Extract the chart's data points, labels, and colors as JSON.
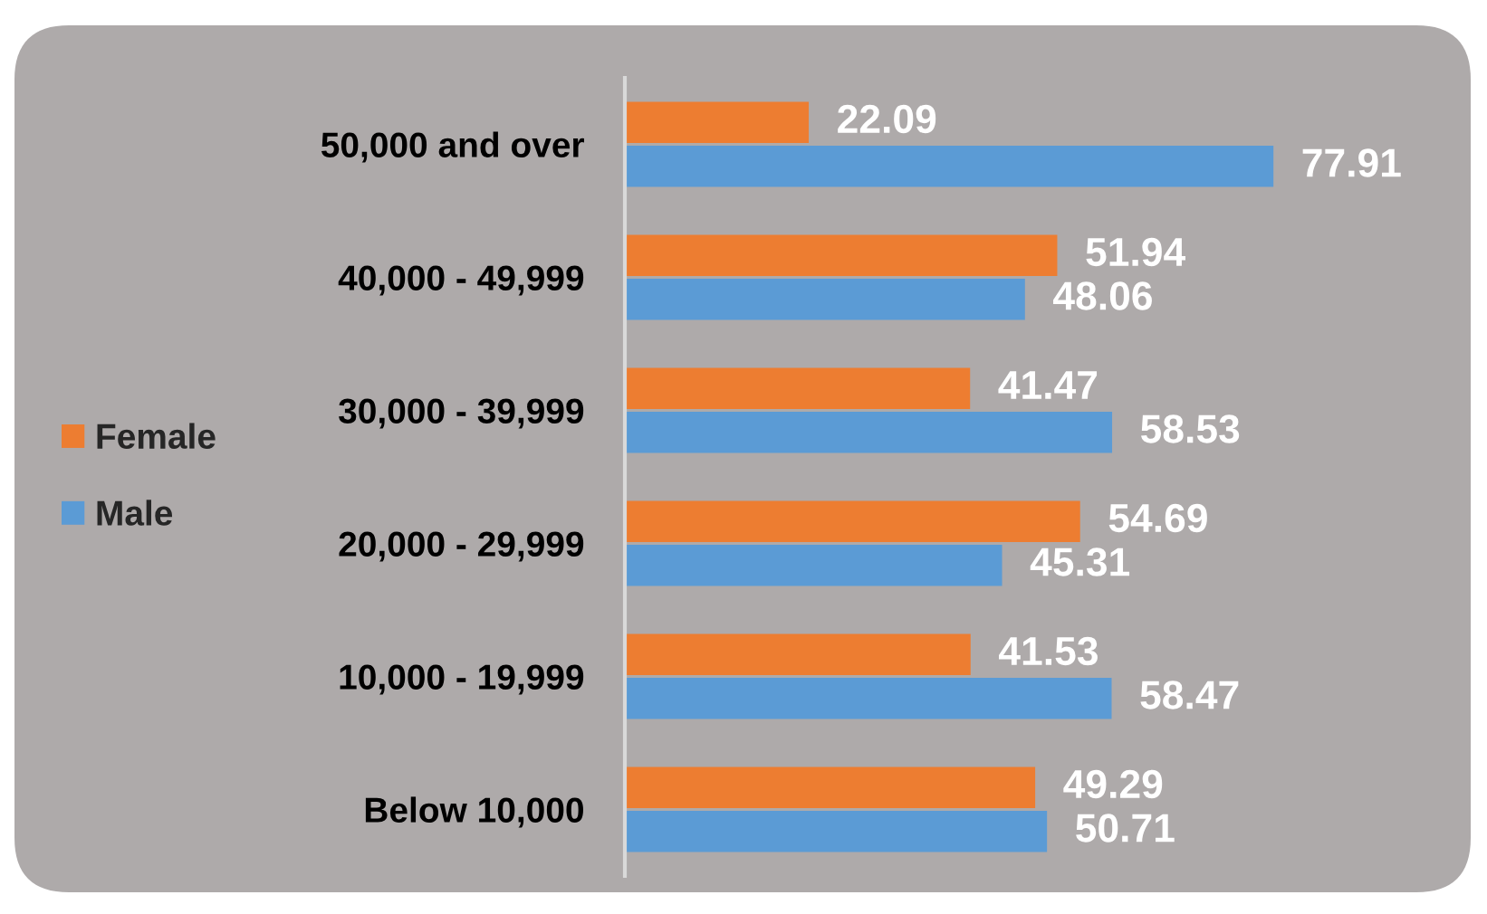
{
  "chart_data": {
    "type": "bar",
    "orientation": "horizontal",
    "categories": [
      "50,000 and over",
      "40,000 - 49,999",
      "30,000 - 39,999",
      "20,000 - 29,999",
      "10,000 - 19,999",
      "Below 10,000"
    ],
    "series": [
      {
        "name": "Female",
        "color": "#ed7d31",
        "values": [
          22.09,
          51.94,
          41.47,
          54.69,
          41.53,
          49.29
        ]
      },
      {
        "name": "Male",
        "color": "#5b9bd5",
        "values": [
          77.91,
          48.06,
          58.53,
          45.31,
          58.47,
          50.71
        ]
      }
    ],
    "data_labels": true,
    "legend": "left",
    "tick_labels": "y",
    "grid": false
  }
}
